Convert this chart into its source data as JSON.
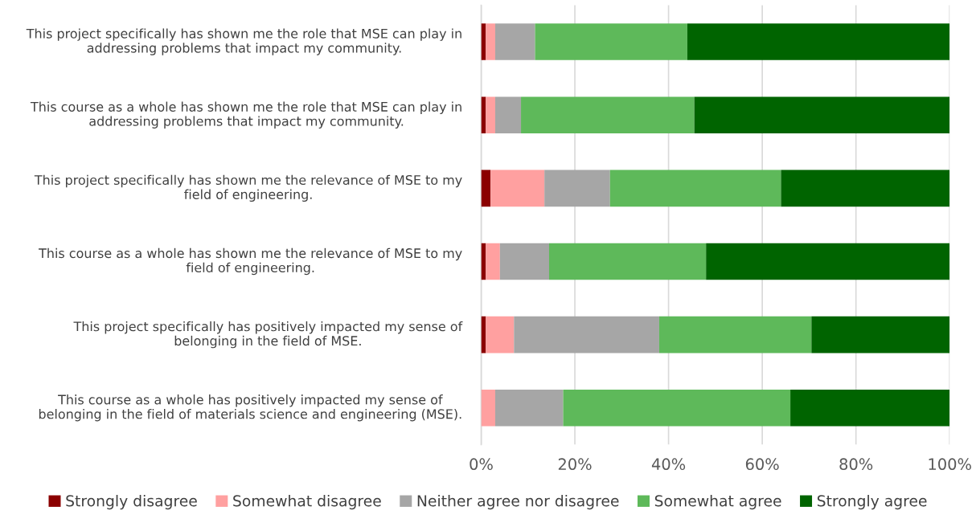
{
  "chart_data": {
    "type": "bar",
    "orientation": "horizontal",
    "stacked": true,
    "categories": [
      "This project specifically has shown me the role that MSE can play in addressing problems that impact my community.",
      "This course as a whole has shown me the role that MSE can play in addressing problems that impact my community.",
      "This project specifically has shown me the relevance of MSE to my field of engineering.",
      "This course as a whole has shown me the relevance of MSE to my field of engineering.",
      "This project specifically has positively impacted my sense of belonging in the field of MSE.",
      "This course as a whole has positively impacted my sense of belonging in the field of materials science and engineering (MSE)."
    ],
    "series": [
      {
        "name": "Strongly disagree",
        "color": "#8b0000",
        "values": [
          1,
          1,
          2,
          1,
          1,
          0
        ]
      },
      {
        "name": "Somewhat disagree",
        "color": "#ffa0a0",
        "values": [
          2,
          2,
          11.5,
          3,
          6,
          3
        ]
      },
      {
        "name": "Neither agree nor disagree",
        "color": "#a6a6a6",
        "values": [
          8.5,
          5.5,
          14,
          10.5,
          31,
          14.5
        ]
      },
      {
        "name": "Somewhat agree",
        "color": "#5eb95a",
        "values": [
          32.5,
          37,
          36.5,
          33.5,
          32.5,
          48.5
        ]
      },
      {
        "name": "Strongly agree",
        "color": "#006400",
        "values": [
          56,
          54.5,
          36,
          52,
          29.5,
          34
        ]
      }
    ],
    "xlim": [
      0,
      100
    ],
    "xticks": [
      {
        "value": 0,
        "label": "0%"
      },
      {
        "value": 20,
        "label": "20%"
      },
      {
        "value": 40,
        "label": "40%"
      },
      {
        "value": 60,
        "label": "60%"
      },
      {
        "value": 80,
        "label": "80%"
      },
      {
        "value": 100,
        "label": "100%"
      }
    ],
    "grid": "x",
    "legend": "bottom"
  }
}
